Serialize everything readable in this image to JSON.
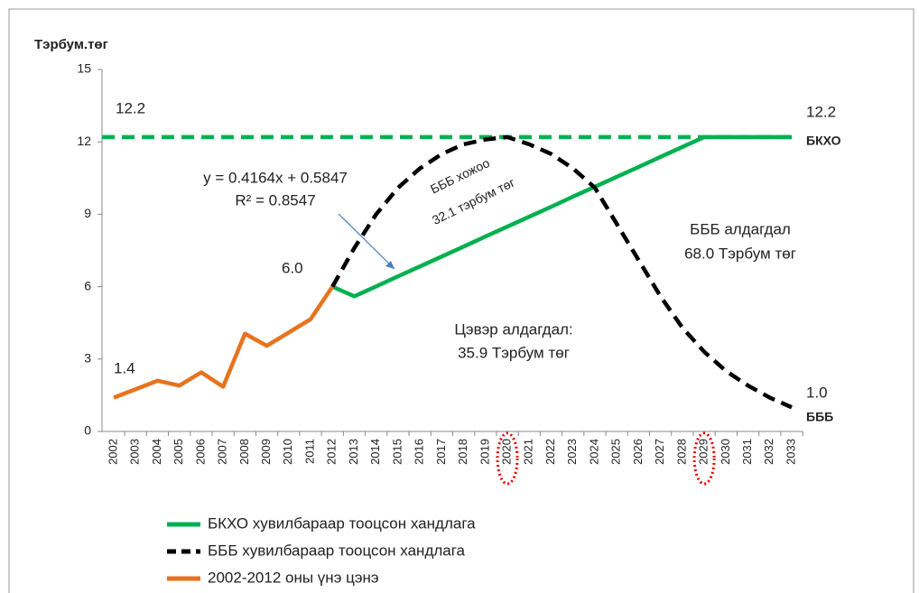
{
  "chart_data": {
    "type": "line",
    "y_label": "Тэрбум.төг",
    "categories": [
      "2002",
      "2003",
      "2004",
      "2005",
      "2006",
      "2007",
      "2008",
      "2009",
      "2010",
      "2011",
      "2012",
      "2013",
      "2014",
      "2015",
      "2016",
      "2017",
      "2018",
      "2019",
      "2020",
      "2021",
      "2022",
      "2023",
      "2024",
      "2025",
      "2026",
      "2027",
      "2028",
      "2029",
      "2030",
      "2031",
      "2032",
      "2033"
    ],
    "ylim": [
      0,
      15
    ],
    "yticks": [
      0,
      3,
      6,
      9,
      12,
      15
    ],
    "series": [
      {
        "name": "БКХО хувилбараар тооцсон хандлага",
        "color": "#00b050",
        "dash": false,
        "values": [
          null,
          null,
          null,
          null,
          null,
          null,
          null,
          null,
          null,
          null,
          6.0,
          5.6,
          6.01,
          6.43,
          6.84,
          7.25,
          7.66,
          8.08,
          8.49,
          8.9,
          9.31,
          9.73,
          10.14,
          10.55,
          10.96,
          11.38,
          11.79,
          12.2,
          12.2,
          12.2,
          12.2,
          12.2
        ]
      },
      {
        "name": "БББ хувилбараар тооцсон хандлага",
        "color": "#000000",
        "dash": true,
        "values": [
          null,
          null,
          null,
          null,
          null,
          null,
          null,
          null,
          null,
          null,
          6.0,
          7.6,
          9.0,
          10.1,
          10.9,
          11.5,
          11.9,
          12.1,
          12.2,
          11.9,
          11.5,
          10.9,
          10.1,
          8.6,
          7.1,
          5.6,
          4.3,
          3.3,
          2.5,
          1.9,
          1.4,
          1.0
        ]
      },
      {
        "name": "2002-2012 оны үнэ цэнэ",
        "color": "#e8731e",
        "dash": false,
        "values": [
          1.4,
          1.75,
          2.1,
          1.9,
          2.45,
          1.85,
          4.05,
          3.55,
          4.1,
          4.65,
          6.0,
          null,
          null,
          null,
          null,
          null,
          null,
          null,
          null,
          null,
          null,
          null,
          null,
          null,
          null,
          null,
          null,
          null,
          null,
          null,
          null,
          null
        ]
      }
    ],
    "reference_line": {
      "value": 12.2,
      "color": "#00b050"
    },
    "highlighted": [
      "2020",
      "2029"
    ],
    "annotations": [
      "12.2",
      "6.0",
      "1.4",
      "12.2",
      "БКХО",
      "1.0",
      "БББ",
      "y = 0.4164x + 0.5847",
      "R² = 0.8547",
      "БББ хожоо",
      "32.1 тэрбум төг",
      "БББ алдагдал",
      "68.0 Тэрбум төг",
      "Цэвэр алдагдал:",
      "35.9 Тэрбум төг"
    ]
  }
}
